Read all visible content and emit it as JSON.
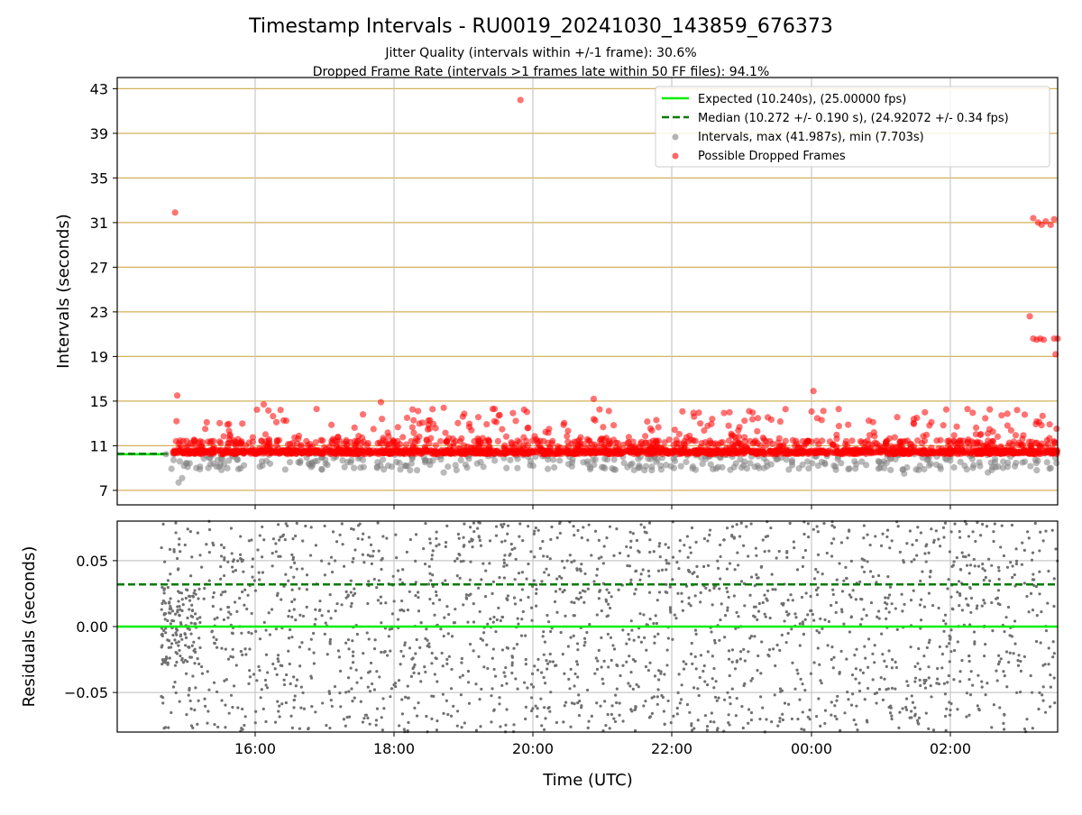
{
  "chart_data": {
    "title": "Timestamp Intervals - RU0019_20241030_143859_676373",
    "subtitle_lines": [
      "Jitter Quality (intervals within +/-1 frame): 30.6%",
      "Dropped Frame Rate (intervals >1 frames late within 50 FF files): 94.1%"
    ],
    "x_tick_labels": [
      "16:00",
      "18:00",
      "20:00",
      "22:00",
      "00:00",
      "02:00"
    ],
    "xlabel": "Time (UTC)",
    "colors": {
      "expected": "#00ee00",
      "median": "#007a00",
      "intervals": "#808080",
      "dropped": "#ff0000",
      "hgrid": "#d4b25a",
      "vgrid": "#c8c8c8"
    },
    "panels": [
      {
        "type": "scatter",
        "ylabel": "Intervals (seconds)",
        "ylim": [
          5.7,
          44
        ],
        "yticks": [
          7,
          11,
          15,
          19,
          23,
          27,
          31,
          35,
          39,
          43
        ],
        "y_tick_labels": [
          "7",
          "11",
          "15",
          "19",
          "23",
          "27",
          "31",
          "35",
          "39",
          "43"
        ],
        "xlim_hours": [
          14.02,
          27.5
        ],
        "grid": true,
        "legend_position": "upper-right",
        "legend": [
          "Expected (10.240s), (25.00000 fps)",
          "Median (10.272 +/- 0.190 s), (24.92072 +/- 0.34 fps)",
          "Intervals, max (41.987s), min (7.703s)",
          "Possible Dropped Frames"
        ],
        "series": [
          {
            "kind": "hline",
            "y": 10.24,
            "color_key": "expected"
          },
          {
            "kind": "hline_dashed",
            "y": 10.272,
            "color_key": "median"
          },
          {
            "kind": "points",
            "color_key": "intervals",
            "data_hours": [
              [
                14.72,
                10.24
              ],
              [
                14.83,
                10.24
              ],
              [
                14.9,
                7.7
              ],
              [
                14.95,
                8.1
              ],
              [
                15.4,
                9.4
              ],
              [
                16.8,
                9.1
              ],
              [
                18.7,
                8.6
              ],
              [
                19.6,
                9.0
              ],
              [
                20.8,
                8.9
              ],
              [
                22.0,
                9.0
              ],
              [
                23.2,
                9.2
              ],
              [
                24.5,
                8.9
              ],
              [
                25.3,
                8.5
              ],
              [
                26.5,
                8.6
              ],
              [
                27.2,
                8.8
              ],
              [
                27.4,
                9.0
              ]
            ]
          },
          {
            "kind": "points",
            "color_key": "dropped",
            "data_hours": [
              [
                14.85,
                31.9
              ],
              [
                14.88,
                15.5
              ],
              [
                14.87,
                13.2
              ],
              [
                19.8,
                41.987
              ],
              [
                20.85,
                15.2
              ],
              [
                24.0,
                15.9
              ],
              [
                17.8,
                14.9
              ],
              [
                18.7,
                14.4
              ],
              [
                16.12,
                14.7
              ],
              [
                27.15,
                31.4
              ],
              [
                27.22,
                31.0
              ],
              [
                27.27,
                30.8
              ],
              [
                27.33,
                31.1
              ],
              [
                27.4,
                30.8
              ],
              [
                27.45,
                31.3
              ],
              [
                27.1,
                22.6
              ],
              [
                27.15,
                20.6
              ],
              [
                27.2,
                20.5
              ],
              [
                27.25,
                20.6
              ],
              [
                27.3,
                20.5
              ],
              [
                27.45,
                20.6
              ],
              [
                27.5,
                20.6
              ],
              [
                27.47,
                19.2
              ]
            ]
          }
        ]
      },
      {
        "type": "scatter",
        "ylabel": "Residuals (seconds)",
        "ylim": [
          -0.08,
          0.08
        ],
        "yticks": [
          -0.05,
          0.0,
          0.05
        ],
        "y_tick_labels": [
          "−0.05",
          "0.00",
          "0.05"
        ],
        "xlim_hours": [
          14.02,
          27.5
        ],
        "grid": true,
        "series": [
          {
            "kind": "hline",
            "y": 0.0,
            "color_key": "expected"
          },
          {
            "kind": "hline_dashed",
            "y": 0.032,
            "color_key": "median"
          },
          {
            "kind": "points",
            "color_key": "intervals",
            "x_range_hours": [
              14.65,
              27.5
            ],
            "y_range": [
              -0.08,
              0.08
            ]
          }
        ]
      }
    ]
  }
}
